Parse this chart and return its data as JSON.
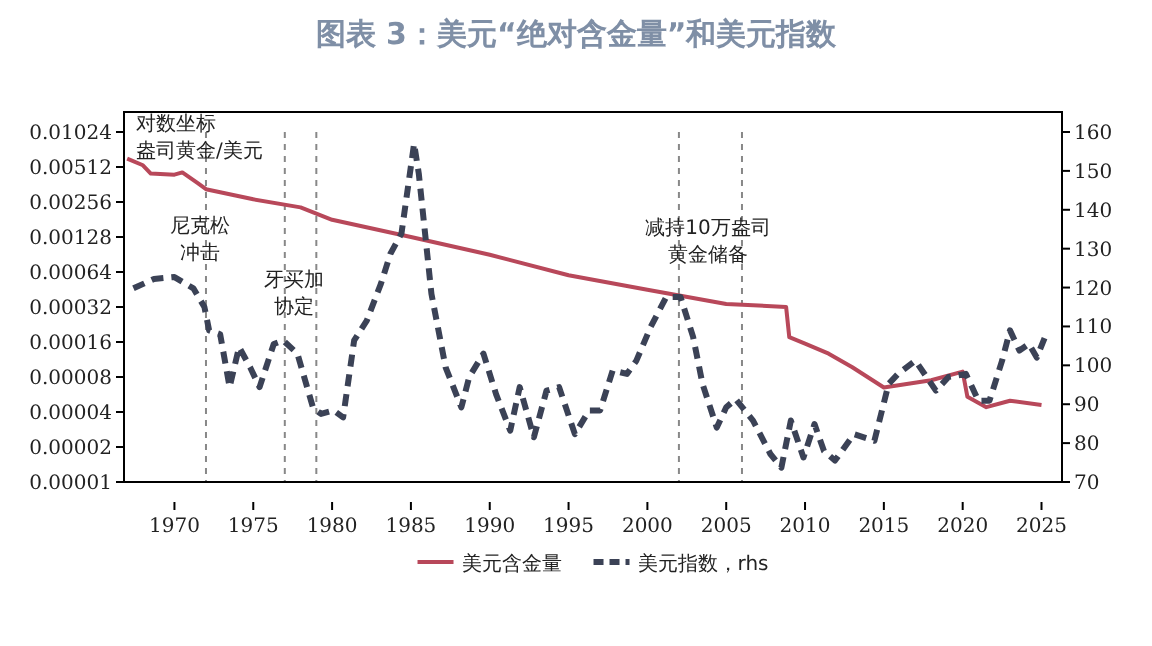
{
  "chart_data": {
    "type": "line",
    "title": "图表 3：美元“绝对含金量”和美元指数",
    "log": "y",
    "legend": "bottom",
    "marker": "none",
    "xlim": [
      1966.8,
      2026.3
    ],
    "xticks": [
      1970,
      1975,
      1980,
      1985,
      1990,
      1995,
      2000,
      2005,
      2010,
      2015,
      2020,
      2025
    ],
    "ylim": [
      1e-05,
      0.01024
    ],
    "yticks": [
      {
        "value": 1e-05,
        "label": "0.00001"
      },
      {
        "value": 2e-05,
        "label": "0.00002"
      },
      {
        "value": 4e-05,
        "label": "0.00004"
      },
      {
        "value": 8e-05,
        "label": "0.00008"
      },
      0.00016,
      0.00032,
      0.00064,
      0.00128,
      0.00256,
      0.00512,
      0.01024
    ],
    "y2lim": [
      70,
      160
    ],
    "y2ticks": [
      70,
      80,
      90,
      100,
      110,
      120,
      130,
      140,
      150,
      160
    ],
    "series": [
      {
        "name": "美元含金量",
        "color": "#b8485a",
        "line_style": "solid",
        "x": [
          1967,
          1968,
          1968.5,
          1970,
          1970.5,
          1971.5,
          1972,
          1975,
          1978,
          1980,
          1985,
          1990,
          1995,
          2000,
          2005,
          2008.8,
          2009,
          2010,
          2011.5,
          2013,
          2015,
          2018,
          2020,
          2020.3,
          2021.5,
          2023,
          2025
        ],
        "values": [
          0.00604,
          0.0053,
          0.0045,
          0.0044,
          0.0046,
          0.0037,
          0.0033,
          0.0027,
          0.0023,
          0.0018,
          0.00128,
          0.0009,
          0.0006,
          0.00045,
          0.00034,
          0.00032,
          0.000176,
          0.000155,
          0.000127,
          9.7e-05,
          6.5e-05,
          7.5e-05,
          8.9e-05,
          5.4e-05,
          4.4e-05,
          5e-05,
          4.6e-05
        ]
      },
      {
        "name": "美元指数，rhs",
        "color": "#3b4256",
        "axis": "y2",
        "line_style": "dashed",
        "x": [
          1967.4,
          1968.7,
          1970,
          1971.2,
          1971.9,
          1972.2,
          1972.9,
          1973.5,
          1974.1,
          1974.8,
          1975.4,
          1976.3,
          1976.9,
          1977.8,
          1978.8,
          1979.3,
          1980.1,
          1980.7,
          1981.4,
          1982.2,
          1983.1,
          1983.7,
          1984.4,
          1985.2,
          1985.5,
          1986.3,
          1987.2,
          1988.2,
          1988.7,
          1989.6,
          1990.4,
          1991.3,
          1991.9,
          1992.8,
          1993.6,
          1994.4,
          1995.4,
          1996.3,
          1997,
          1997.8,
          1998.7,
          1999.3,
          2000.2,
          2001.2,
          2002.1,
          2002.9,
          2003.5,
          2004.4,
          2005,
          2005.6,
          2006.7,
          2007.8,
          2008.5,
          2009.1,
          2009.9,
          2010.6,
          2011.2,
          2011.9,
          2013.1,
          2014.4,
          2015.3,
          2015.9,
          2017,
          2018.3,
          2019.1,
          2020.2,
          2021,
          2021.7,
          2022.5,
          2023,
          2023.6,
          2024.2,
          2024.7,
          2025.3
        ],
        "values": [
          119.8,
          122.2,
          122.7,
          119.8,
          115,
          109,
          108,
          94.4,
          104.7,
          99.5,
          94.4,
          105.5,
          106.4,
          103,
          89,
          87.5,
          88.4,
          86.6,
          106.4,
          111.5,
          121,
          128.7,
          133.9,
          157,
          149.3,
          118.4,
          99.5,
          89.2,
          97,
          103,
          92.6,
          83.2,
          94.4,
          81.5,
          93.5,
          94.4,
          82.3,
          88.4,
          88.4,
          98.7,
          97.8,
          101.2,
          109.8,
          117.6,
          117.6,
          107.3,
          95.2,
          84,
          89.2,
          91.3,
          85.8,
          77.2,
          73.7,
          85.8,
          76.3,
          84.9,
          78,
          75.5,
          82.3,
          80.6,
          95.2,
          97.8,
          101.2,
          93.5,
          97,
          97.8,
          90.9,
          90.9,
          101.2,
          109,
          103.8,
          105.5,
          102,
          108.1
        ]
      }
    ],
    "ref_lines": [
      {
        "axis": "x",
        "value": 1972,
        "color": "#888888",
        "line_style": "dashed"
      },
      {
        "axis": "x",
        "value": 1977,
        "color": "#888888",
        "line_style": "dashed"
      },
      {
        "axis": "x",
        "value": 1979,
        "color": "#888888",
        "line_style": "dashed"
      },
      {
        "axis": "x",
        "value": 2002,
        "color": "#888888",
        "line_style": "dashed"
      },
      {
        "axis": "x",
        "value": 2006,
        "color": "#888888",
        "line_style": "dashed"
      }
    ],
    "annotations": [
      "对数坐标盎司黄金/美元",
      "尼克松冲击",
      "牙买加协定",
      "减持10万盎司黄金储备"
    ]
  }
}
